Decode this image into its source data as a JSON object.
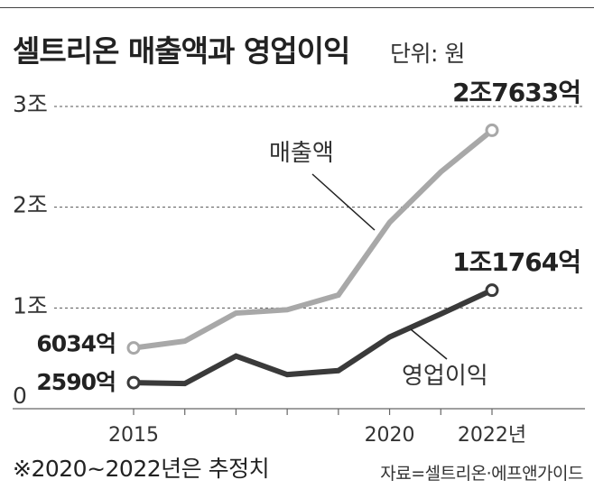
{
  "title": "셀트리온 매출액과 영업이익",
  "unit": "단위: 원",
  "footnote": "※2020~2022년은 추정치",
  "source": "자료=셀트리온·에프앤가이드",
  "colors": {
    "revenue": "#a8a8a8",
    "operating_profit": "#3a3a3a",
    "gridline": "#555555"
  },
  "chart_data": {
    "type": "line",
    "title": "셀트리온 매출액과 영업이익",
    "x": [
      2015,
      2016,
      2017,
      2018,
      2019,
      2020,
      2021,
      2022
    ],
    "x_tick_labels": [
      "2015",
      "2020",
      "2022년"
    ],
    "y_tick_labels": [
      "0",
      "1조",
      "2조",
      "3조"
    ],
    "ylim": [
      0,
      30000
    ],
    "y_unit": "억원",
    "grid": true,
    "series": [
      {
        "name": "매출액",
        "values": [
          6034,
          6705,
          9491,
          9821,
          11285,
          18491,
          23500,
          27633
        ],
        "label_first": "6034억",
        "label_last": "2조7633억"
      },
      {
        "name": "영업이익",
        "values": [
          2590,
          2500,
          5220,
          3387,
          3781,
          7121,
          9400,
          11764
        ],
        "label_first": "2590억",
        "label_last": "1조1764억"
      }
    ]
  }
}
